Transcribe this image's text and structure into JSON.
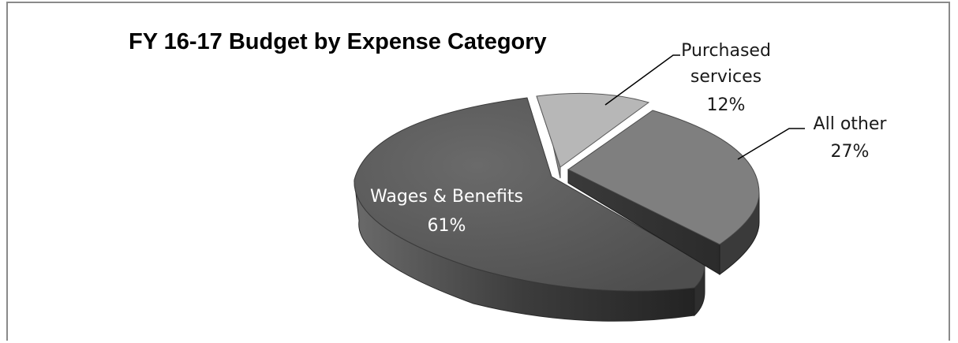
{
  "chart_data": {
    "type": "pie",
    "title": "FY 16-17 Budget by Expense Category",
    "style": "3d-exploded",
    "slices": [
      {
        "label": "Wages & Benefits",
        "pct_text": "61%",
        "value": 61,
        "color": "#5a5a5a"
      },
      {
        "label": "Purchased services",
        "label_lines": [
          "Purchased",
          "services"
        ],
        "pct_text": "12%",
        "value": 12,
        "color": "#b5b5b5"
      },
      {
        "label": "All other",
        "pct_text": "27%",
        "value": 27,
        "color": "#7f7f7f"
      }
    ]
  }
}
